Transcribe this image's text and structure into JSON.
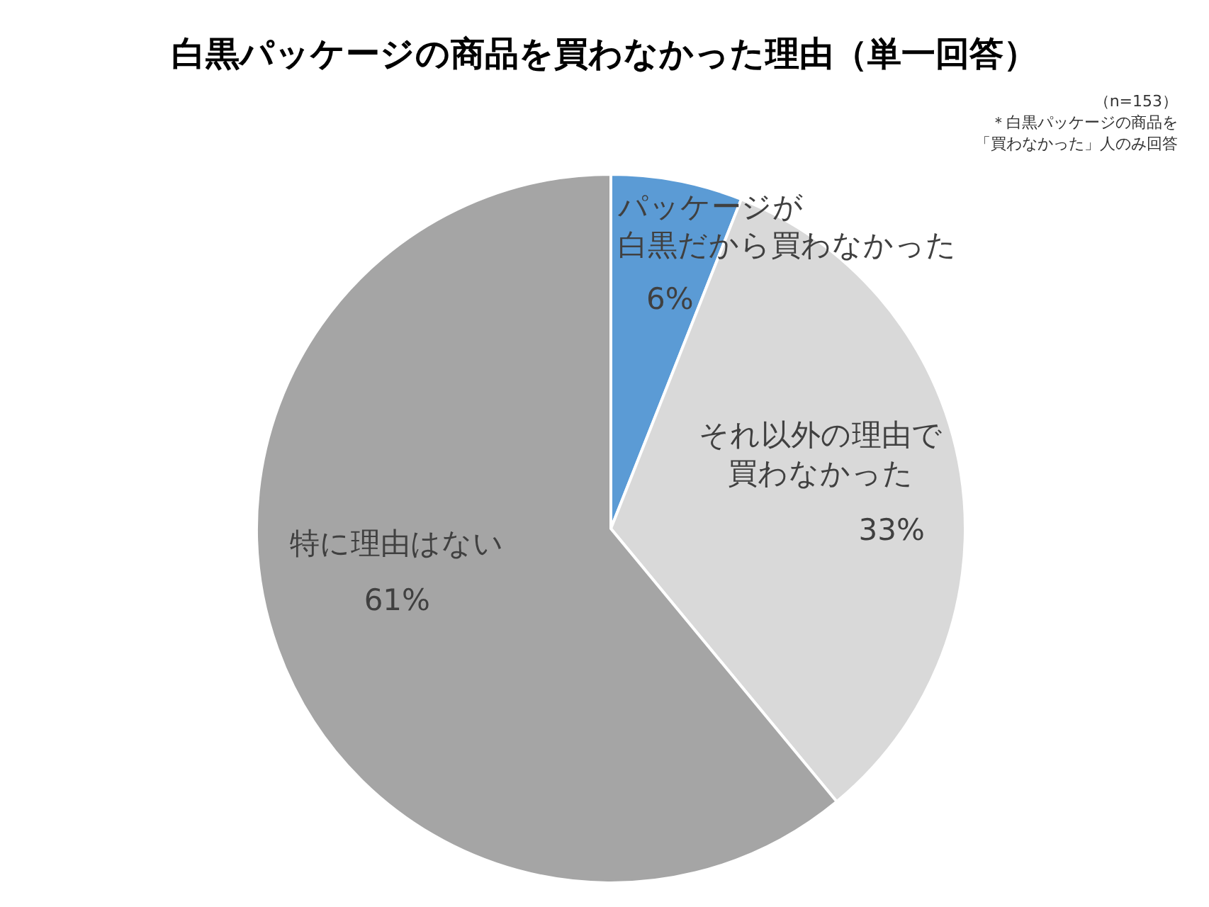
{
  "chart_data": {
    "type": "pie",
    "title": "白黒パッケージの商品を買わなかった理由（単一回答）",
    "annotations": [
      "（n=153）",
      "＊白黒パッケージの商品を「買わなかった」人のみ回答"
    ],
    "categories": [
      "パッケージが白黒だから買わなかった",
      "それ以外の理由で買わなかった",
      "特に理由はない"
    ],
    "values": [
      6,
      33,
      61
    ],
    "value_labels": [
      "6%",
      "33%",
      "61%"
    ],
    "colors": [
      "#5b9bd5",
      "#d9d9d9",
      "#a5a5a5"
    ],
    "legend": false
  }
}
